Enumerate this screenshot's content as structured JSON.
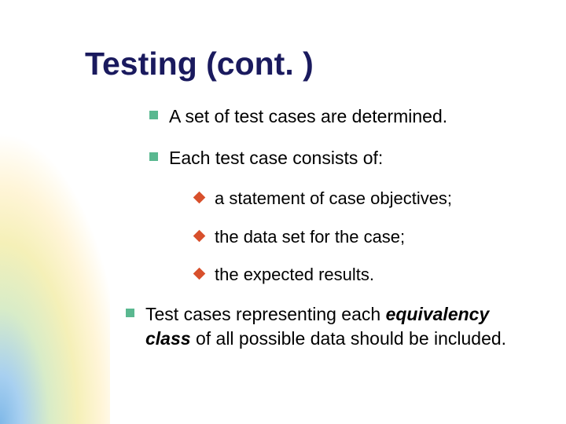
{
  "slide": {
    "title": "Testing (cont. )",
    "title_color": "#1a1a5e",
    "title_fontsize": 41,
    "body_fontsize_l1": 23,
    "body_fontsize_l2": 22,
    "bullet_l1_color": "#5ab890",
    "bullet_l2_color": "#d8502c",
    "background_color": "#ffffff",
    "gradient_colors": [
      "#7fb8e8",
      "#a8d0f0",
      "#d8ecc8",
      "#f5f0b8",
      "#fff5d8",
      "#ffffff"
    ],
    "bullets": {
      "b1": "A set of test cases are determined.",
      "b2": "Each test case consists of:",
      "b2_1": "a statement of case objectives;",
      "b2_2": "the data set for the case;",
      "b2_3": "the expected results.",
      "b3_pre": "Test cases representing each ",
      "b3_em": "equivalency class",
      "b3_post": " of all possible data should be included."
    }
  }
}
